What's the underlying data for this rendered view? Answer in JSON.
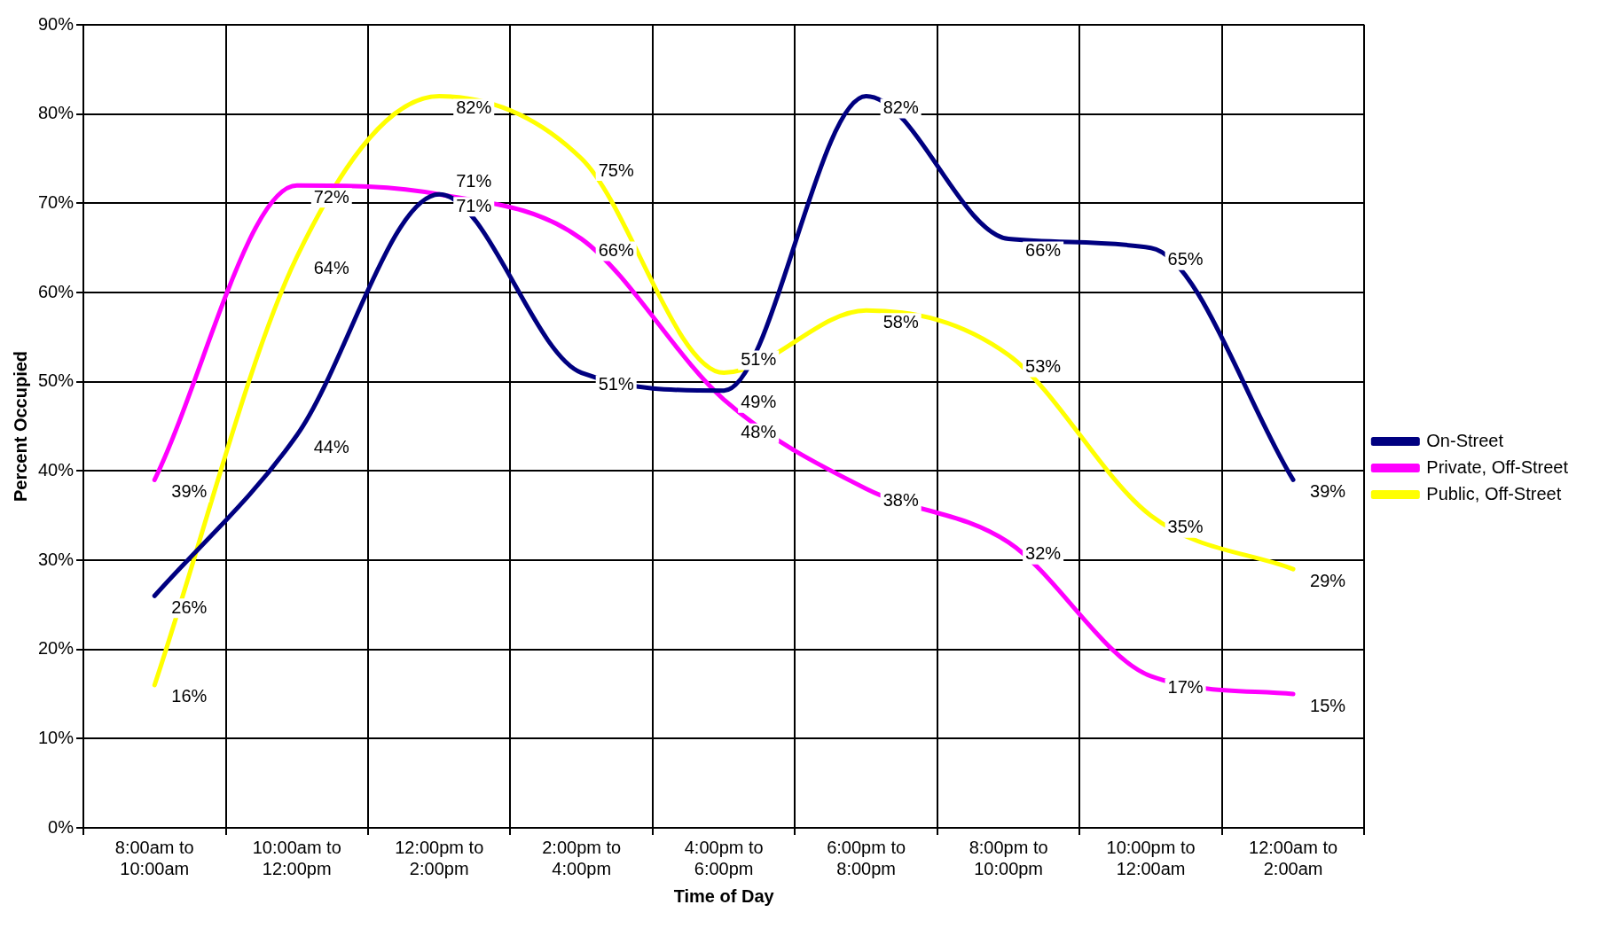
{
  "chart_data": {
    "type": "line",
    "xlabel": "Time of Day",
    "ylabel": "Percent Occupied",
    "categories": [
      "8:00am to 10:00am",
      "10:00am to 12:00pm",
      "12:00pm to 2:00pm",
      "2:00pm to 4:00pm",
      "4:00pm to 6:00pm",
      "6:00pm to 8:00pm",
      "8:00pm to 10:00pm",
      "10:00pm to 12:00am",
      "12:00am to 2:00am"
    ],
    "series": [
      {
        "name": "On-Street",
        "color": "#000080",
        "values": [
          26,
          44,
          71,
          51,
          49,
          82,
          66,
          65,
          39
        ],
        "value_labels": [
          "26%",
          "44%",
          "71%",
          "51%",
          "49%",
          "82%",
          "66%",
          "65%",
          "39%"
        ]
      },
      {
        "name": "Private, Off-Street",
        "color": "#ff00ff",
        "values": [
          39,
          72,
          71,
          66,
          48,
          38,
          32,
          17,
          15
        ],
        "value_labels": [
          "39%",
          "72%",
          "71%",
          "66%",
          "48%",
          "38%",
          "32%",
          "17%",
          "15%"
        ]
      },
      {
        "name": "Public, Off-Street",
        "color": "#ffff00",
        "values": [
          16,
          64,
          82,
          75,
          51,
          58,
          53,
          35,
          29
        ],
        "value_labels": [
          "16%",
          "64%",
          "82%",
          "75%",
          "51%",
          "58%",
          "53%",
          "35%",
          "29%"
        ]
      }
    ],
    "ylim": [
      0,
      90
    ],
    "yticks": [
      {
        "value": 0,
        "label": "0%"
      },
      {
        "value": 10,
        "label": "10%"
      },
      {
        "value": 20,
        "label": "20%"
      },
      {
        "value": 30,
        "label": "30%"
      },
      {
        "value": 40,
        "label": "40%"
      },
      {
        "value": 50,
        "label": "50%"
      },
      {
        "value": 60,
        "label": "60%"
      },
      {
        "value": 70,
        "label": "70%"
      },
      {
        "value": 80,
        "label": "80%"
      },
      {
        "value": 90,
        "label": "90%"
      }
    ],
    "grid": true,
    "legend": "right",
    "marker": "none",
    "line_style": "solid"
  }
}
